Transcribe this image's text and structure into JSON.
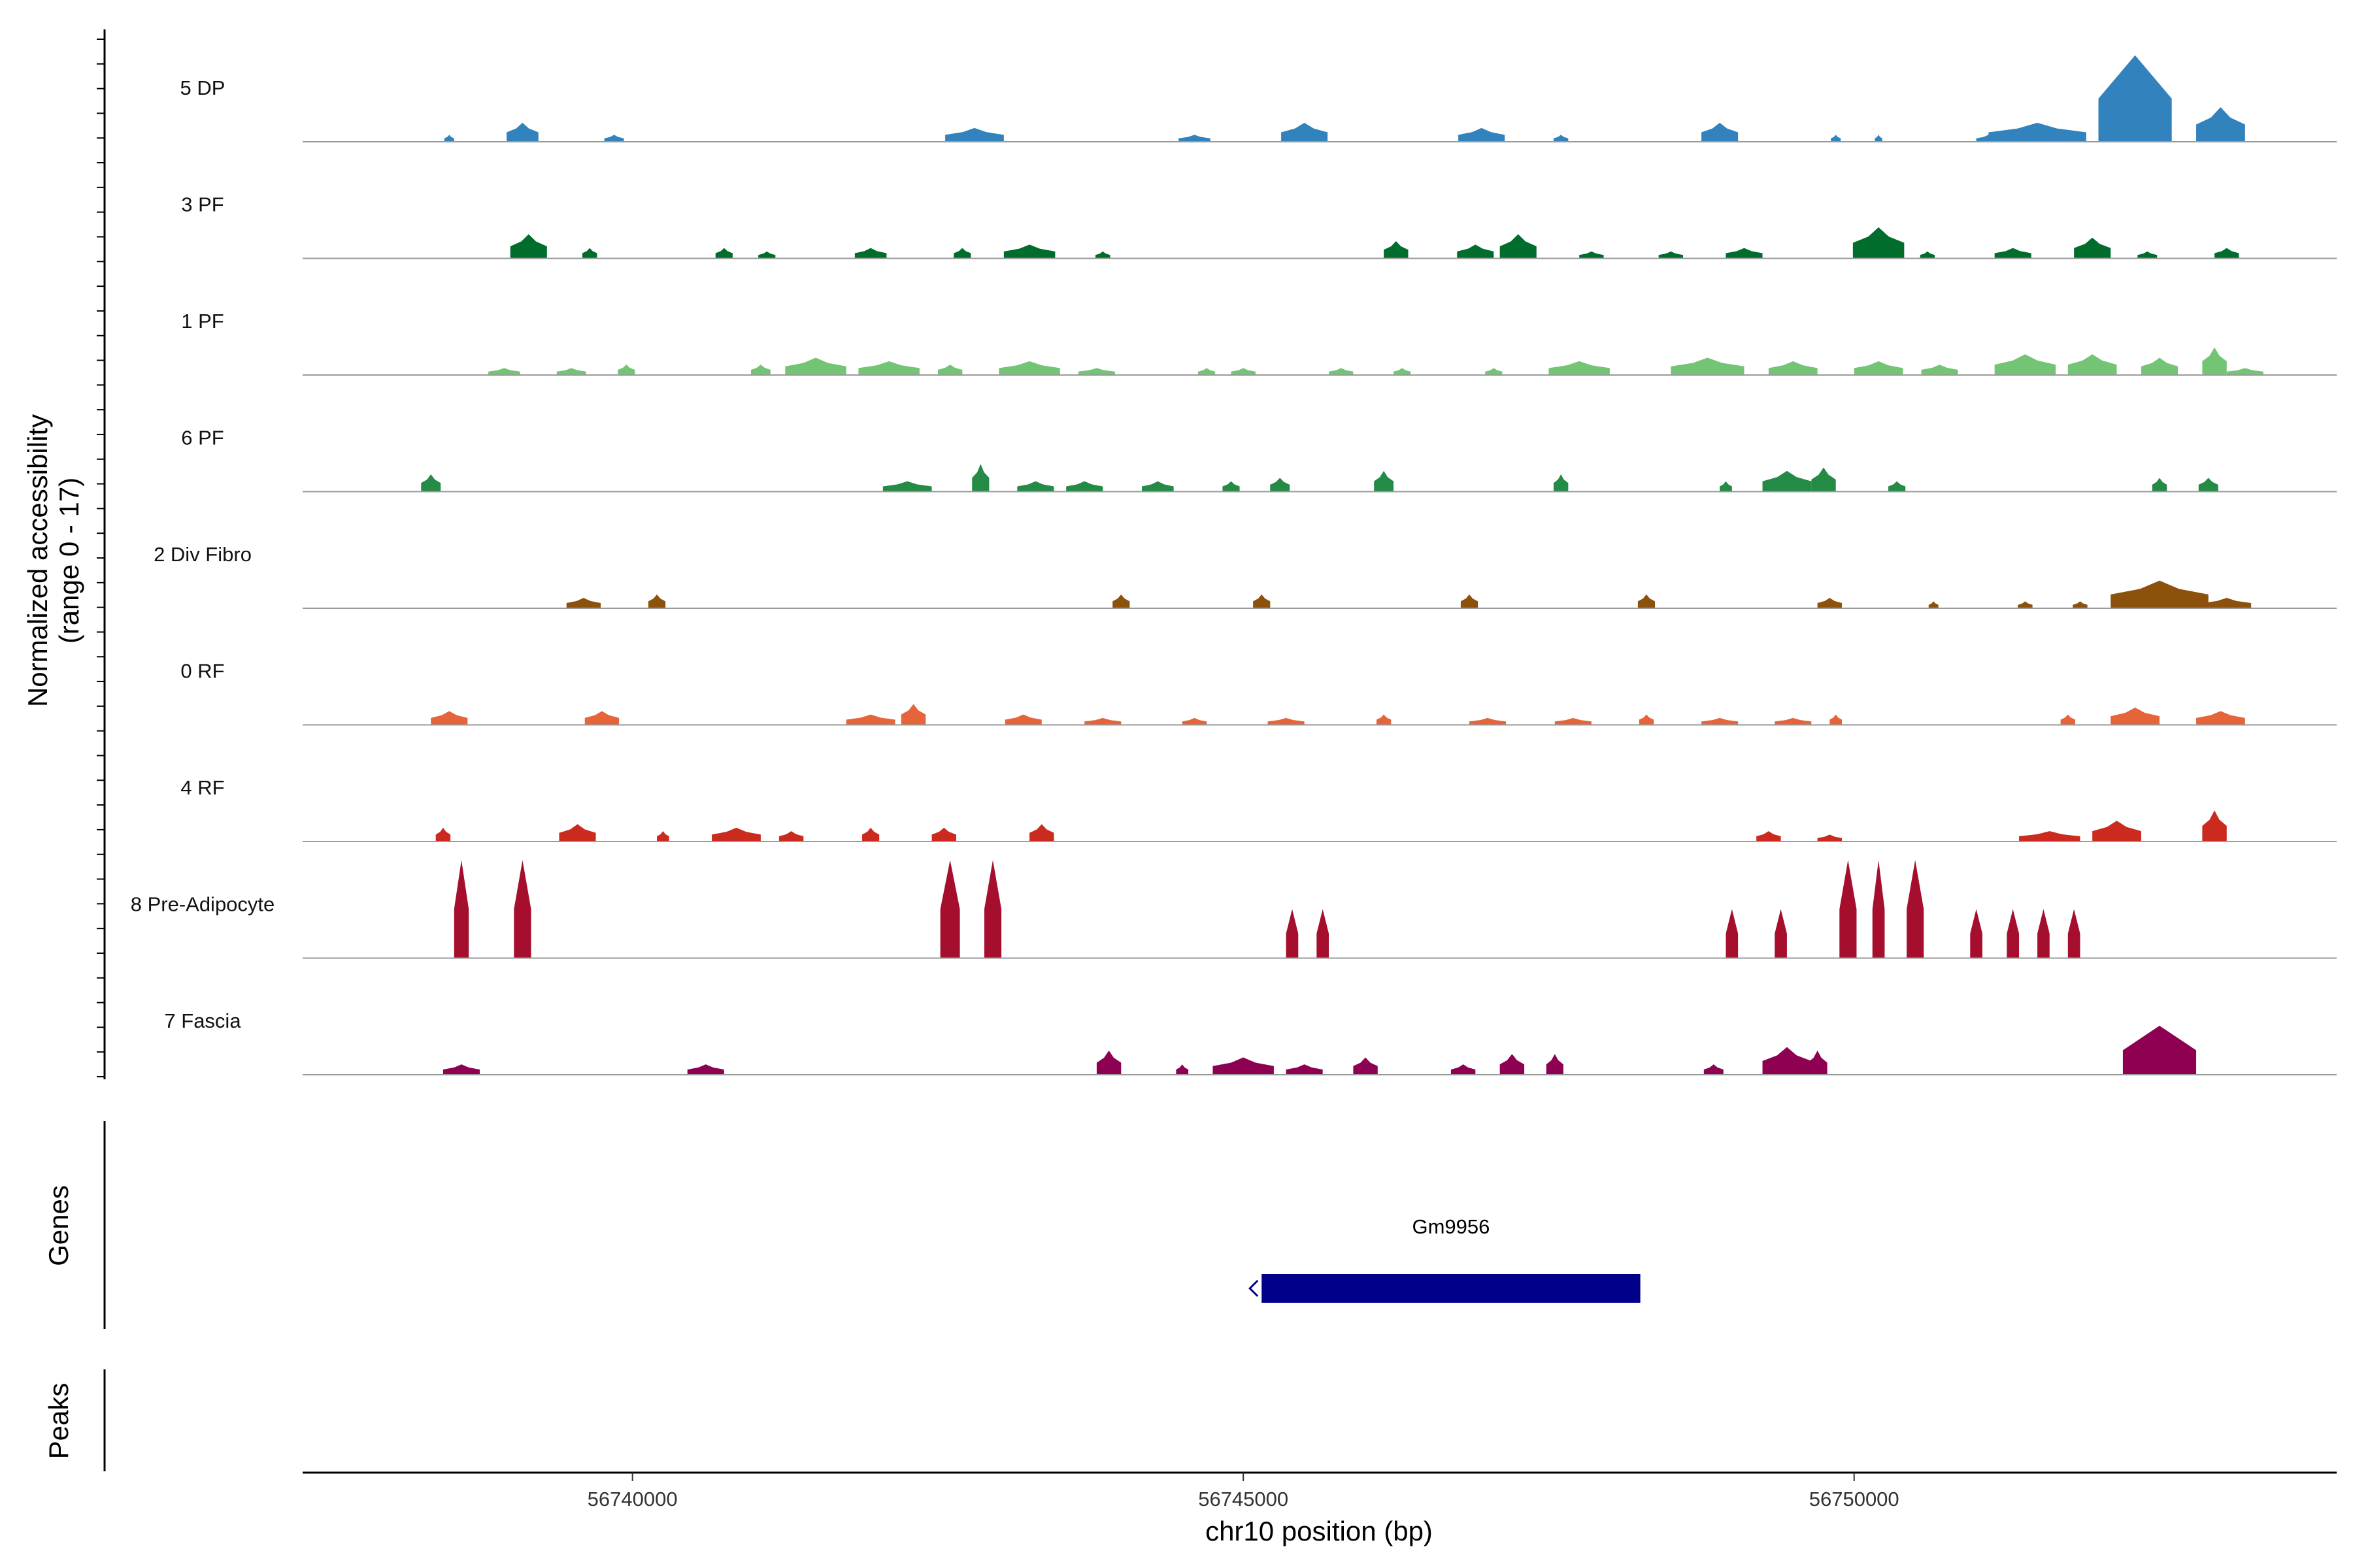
{
  "chart_data": {
    "type": "area",
    "title": "",
    "chromosome": "chr10",
    "xlabel": "chr10 position (bp)",
    "ylabel_line1": "Normalized accessibility",
    "ylabel_line2": "(range 0 - 17)",
    "y_range": [
      0,
      17
    ],
    "xlim": [
      56737300,
      56753950
    ],
    "x_ticks": [
      56740000,
      56745000,
      56750000
    ],
    "x_tick_labels": [
      "56740000",
      "56745000",
      "56750000"
    ],
    "panel_labels": {
      "genes": "Genes",
      "peaks": "Peaks"
    },
    "genes": [
      {
        "name": "Gm9956",
        "start": 56745150,
        "end": 56748250,
        "strand": "-",
        "color": "#00008B"
      }
    ],
    "tracks": [
      {
        "name": "5 DP",
        "color": "#3182BD",
        "peaks": [
          [
            56738500,
            80,
            1.2
          ],
          [
            56739100,
            260,
            3.3
          ],
          [
            56739850,
            160,
            1.2
          ],
          [
            56742800,
            480,
            2.4
          ],
          [
            56744600,
            260,
            1.2
          ],
          [
            56745500,
            380,
            3.3
          ],
          [
            56746950,
            380,
            2.4
          ],
          [
            56747600,
            120,
            1.2
          ],
          [
            56748900,
            300,
            3.3
          ],
          [
            56749850,
            80,
            1.2
          ],
          [
            56750200,
            60,
            1.2
          ],
          [
            56751100,
            200,
            1.2
          ],
          [
            56751500,
            800,
            3.3
          ],
          [
            56752300,
            600,
            15.0
          ],
          [
            56753000,
            400,
            6.0
          ]
        ]
      },
      {
        "name": "3 PF",
        "color": "#006D2C",
        "peaks": [
          [
            56739150,
            300,
            4.2
          ],
          [
            56739650,
            120,
            1.8
          ],
          [
            56740750,
            140,
            1.8
          ],
          [
            56741100,
            140,
            1.2
          ],
          [
            56741950,
            260,
            1.8
          ],
          [
            56742700,
            140,
            1.8
          ],
          [
            56743250,
            420,
            2.4
          ],
          [
            56743850,
            120,
            1.2
          ],
          [
            56746250,
            200,
            3.0
          ],
          [
            56746900,
            300,
            2.4
          ],
          [
            56747250,
            300,
            4.2
          ],
          [
            56747850,
            200,
            1.2
          ],
          [
            56748500,
            200,
            1.2
          ],
          [
            56749100,
            300,
            1.8
          ],
          [
            56750200,
            420,
            5.4
          ],
          [
            56750600,
            120,
            1.2
          ],
          [
            56751300,
            300,
            1.8
          ],
          [
            56751950,
            300,
            3.6
          ],
          [
            56752400,
            160,
            1.2
          ],
          [
            56753050,
            200,
            1.8
          ]
        ]
      },
      {
        "name": "1 PF",
        "color": "#74C476",
        "peaks": [
          [
            56738950,
            260,
            1.2
          ],
          [
            56739500,
            240,
            1.2
          ],
          [
            56739950,
            140,
            1.8
          ],
          [
            56741050,
            160,
            1.8
          ],
          [
            56741500,
            500,
            3.0
          ],
          [
            56742100,
            500,
            2.4
          ],
          [
            56742600,
            200,
            1.8
          ],
          [
            56743250,
            500,
            2.4
          ],
          [
            56743800,
            300,
            1.2
          ],
          [
            56744700,
            140,
            1.2
          ],
          [
            56745000,
            200,
            1.2
          ],
          [
            56745800,
            200,
            1.2
          ],
          [
            56746300,
            140,
            1.2
          ],
          [
            56747050,
            140,
            1.2
          ],
          [
            56747750,
            500,
            2.4
          ],
          [
            56748800,
            600,
            3.0
          ],
          [
            56749500,
            400,
            2.4
          ],
          [
            56750200,
            400,
            2.4
          ],
          [
            56750700,
            300,
            1.8
          ],
          [
            56751400,
            500,
            3.6
          ],
          [
            56751950,
            400,
            3.6
          ],
          [
            56752500,
            300,
            3.0
          ],
          [
            56752950,
            200,
            4.8
          ],
          [
            56753200,
            300,
            1.2
          ]
        ]
      },
      {
        "name": "6 PF",
        "color": "#238B45",
        "peaks": [
          [
            56738350,
            160,
            3.0
          ],
          [
            56742250,
            400,
            1.8
          ],
          [
            56742850,
            140,
            4.8
          ],
          [
            56743300,
            300,
            1.8
          ],
          [
            56743700,
            300,
            1.8
          ],
          [
            56744300,
            260,
            1.8
          ],
          [
            56744900,
            140,
            1.8
          ],
          [
            56745300,
            160,
            2.4
          ],
          [
            56746150,
            160,
            3.6
          ],
          [
            56747600,
            120,
            3.0
          ],
          [
            56748950,
            100,
            1.8
          ],
          [
            56749450,
            400,
            3.6
          ],
          [
            56749750,
            200,
            4.2
          ],
          [
            56750350,
            140,
            1.8
          ],
          [
            56752500,
            120,
            2.4
          ],
          [
            56752900,
            160,
            2.4
          ]
        ]
      },
      {
        "name": "2 Div Fibro",
        "color": "#8C510A",
        "peaks": [
          [
            56739600,
            280,
            1.8
          ],
          [
            56740200,
            140,
            2.4
          ],
          [
            56744000,
            140,
            2.4
          ],
          [
            56745150,
            140,
            2.4
          ],
          [
            56746850,
            140,
            2.4
          ],
          [
            56748300,
            140,
            2.4
          ],
          [
            56749800,
            200,
            1.8
          ],
          [
            56750650,
            80,
            1.2
          ],
          [
            56751400,
            120,
            1.2
          ],
          [
            56751850,
            120,
            1.2
          ],
          [
            56752500,
            800,
            4.8
          ],
          [
            56753050,
            400,
            1.8
          ]
        ]
      },
      {
        "name": "0 RF",
        "color": "#E6643A",
        "peaks": [
          [
            56738500,
            300,
            2.4
          ],
          [
            56739750,
            280,
            2.4
          ],
          [
            56741950,
            400,
            1.8
          ],
          [
            56742300,
            200,
            3.6
          ],
          [
            56743200,
            300,
            1.8
          ],
          [
            56743850,
            300,
            1.2
          ],
          [
            56744600,
            200,
            1.2
          ],
          [
            56745350,
            300,
            1.2
          ],
          [
            56746150,
            120,
            1.8
          ],
          [
            56747000,
            300,
            1.2
          ],
          [
            56747700,
            300,
            1.2
          ],
          [
            56748300,
            120,
            1.8
          ],
          [
            56748900,
            300,
            1.2
          ],
          [
            56749500,
            300,
            1.2
          ],
          [
            56749850,
            100,
            1.8
          ],
          [
            56751750,
            120,
            1.8
          ],
          [
            56752300,
            400,
            3.0
          ],
          [
            56753000,
            400,
            2.4
          ]
        ]
      },
      {
        "name": "4 RF",
        "color": "#CB2A1E",
        "peaks": [
          [
            56738450,
            120,
            2.4
          ],
          [
            56739550,
            300,
            3.0
          ],
          [
            56740250,
            100,
            1.8
          ],
          [
            56740850,
            400,
            2.4
          ],
          [
            56741300,
            200,
            1.8
          ],
          [
            56741950,
            140,
            2.4
          ],
          [
            56742550,
            200,
            2.4
          ],
          [
            56743350,
            200,
            3.0
          ],
          [
            56749300,
            200,
            1.8
          ],
          [
            56749800,
            200,
            1.2
          ],
          [
            56751600,
            500,
            1.8
          ],
          [
            56752150,
            400,
            3.6
          ],
          [
            56752950,
            200,
            5.4
          ]
        ]
      },
      {
        "name": "8 Pre-Adipocyte",
        "color": "#A50F2D",
        "peaks": [
          [
            56738600,
            120,
            17.0
          ],
          [
            56739100,
            140,
            17.0
          ],
          [
            56742600,
            160,
            17.0
          ],
          [
            56742950,
            140,
            17.0
          ],
          [
            56745400,
            100,
            8.5
          ],
          [
            56745650,
            100,
            8.5
          ],
          [
            56749000,
            100,
            8.5
          ],
          [
            56749400,
            100,
            8.5
          ],
          [
            56749950,
            140,
            17.0
          ],
          [
            56750200,
            100,
            17.0
          ],
          [
            56750500,
            140,
            17.0
          ],
          [
            56751000,
            100,
            8.5
          ],
          [
            56751300,
            100,
            8.5
          ],
          [
            56751550,
            100,
            8.5
          ],
          [
            56751800,
            100,
            8.5
          ]
        ]
      },
      {
        "name": "7 Fascia",
        "color": "#8E0152",
        "peaks": [
          [
            56738600,
            300,
            1.8
          ],
          [
            56740600,
            300,
            1.8
          ],
          [
            56743900,
            200,
            4.2
          ],
          [
            56744500,
            100,
            1.8
          ],
          [
            56745000,
            500,
            3.0
          ],
          [
            56745500,
            300,
            1.8
          ],
          [
            56746000,
            200,
            3.0
          ],
          [
            56746800,
            200,
            1.8
          ],
          [
            56747200,
            200,
            3.6
          ],
          [
            56747550,
            140,
            3.6
          ],
          [
            56748850,
            160,
            1.8
          ],
          [
            56749450,
            400,
            4.8
          ],
          [
            56749700,
            160,
            4.2
          ],
          [
            56752500,
            600,
            8.5
          ]
        ]
      }
    ]
  }
}
